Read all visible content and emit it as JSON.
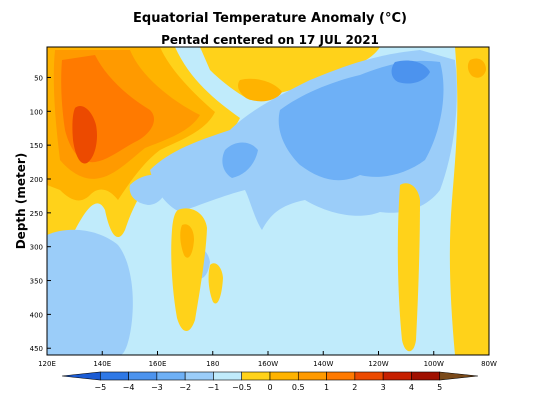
{
  "chart_data": {
    "type": "heatmap",
    "title": "Equatorial Temperature Anomaly (°C)",
    "subtitle": "Pentad centered on 17 JUL 2021",
    "xlabel": "",
    "ylabel": "Depth (meter)",
    "x_ticks": [
      "120E",
      "140E",
      "160E",
      "180",
      "160W",
      "140W",
      "120W",
      "100W",
      "80W"
    ],
    "x_tick_lon": [
      120,
      140,
      160,
      180,
      200,
      220,
      240,
      260,
      280
    ],
    "x_range_lon": [
      120,
      280
    ],
    "y_ticks": [
      50,
      100,
      150,
      200,
      250,
      300,
      350,
      400,
      450
    ],
    "y_range": [
      5,
      460
    ],
    "colorbar": {
      "labels": [
        "−5",
        "−4",
        "−3",
        "−2",
        "−1",
        "−0.5",
        "0",
        "0.5",
        "1",
        "2",
        "3",
        "4",
        "5"
      ],
      "levels": [
        -5,
        -4,
        -3,
        -2,
        -1,
        -0.5,
        0,
        0.5,
        1,
        2,
        3,
        4,
        5
      ],
      "colors": [
        "#1a5bd4",
        "#2e78e6",
        "#4c93ee",
        "#6eb0f6",
        "#9bcdf9",
        "#c0ebfb",
        "#ffd21a",
        "#ffb300",
        "#ff9a00",
        "#ff7a00",
        "#ec4a00",
        "#c62000",
        "#a01000",
        "#7a4a1a"
      ]
    },
    "anomaly_regions": [
      {
        "level": 0.5,
        "label": "warm upper western Pacific",
        "lon": [
          121,
          170
        ],
        "depth": [
          5,
          230
        ]
      },
      {
        "level": 2,
        "label": "warm core 130E-165E",
        "lon": [
          122,
          165
        ],
        "depth": [
          20,
          200
        ]
      },
      {
        "level": 3,
        "label": "peak warm core",
        "lon": [
          127,
          135
        ],
        "depth": [
          90,
          175
        ]
      },
      {
        "level": -1,
        "label": "cool thermocline central-east Pacific",
        "lon": [
          190,
          258
        ],
        "depth": [
          40,
          210
        ]
      },
      {
        "level": -2,
        "label": "cold core near 110W",
        "lon": [
          238,
          252
        ],
        "depth": [
          40,
          90
        ]
      },
      {
        "level": 0.5,
        "label": "warm near surface 170E-160W",
        "lon": [
          168,
          205
        ],
        "depth": [
          5,
          90
        ]
      },
      {
        "level": 0.5,
        "label": "warm eastern boundary",
        "lon": [
          262,
          280
        ],
        "depth": [
          20,
          460
        ]
      },
      {
        "level": -1,
        "label": "cool deep western Pacific",
        "lon": [
          120,
          155
        ],
        "depth": [
          230,
          460
        ]
      },
      {
        "level": 0.5,
        "label": "warm deep tongue 175E",
        "lon": [
          170,
          180
        ],
        "depth": [
          230,
          390
        ]
      }
    ]
  }
}
